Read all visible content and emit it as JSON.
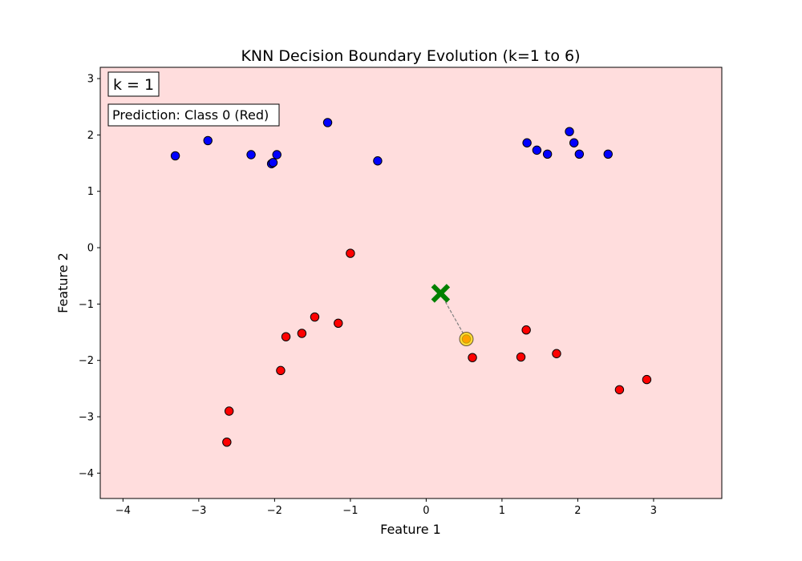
{
  "chart_data": {
    "type": "scatter",
    "title": "KNN Decision Boundary Evolution (k=1 to 6)",
    "xlabel": "Feature 1",
    "ylabel": "Feature 2",
    "xlim": [
      -4.3,
      3.9
    ],
    "ylim": [
      -4.45,
      3.2
    ],
    "xticks": [
      -4,
      -3,
      -2,
      -1,
      0,
      1,
      2,
      3
    ],
    "yticks": [
      -4,
      -3,
      -2,
      -1,
      0,
      1,
      2,
      3
    ],
    "grid": false,
    "background_region": {
      "class": "Class 0 (Red)",
      "color": "#ffdddd"
    },
    "annotations": {
      "k_label": "k = 1",
      "prediction_label": "Prediction: Class 0 (Red)"
    },
    "series": [
      {
        "class": 0,
        "color": "#ff0000",
        "points": [
          [
            -1.0,
            -0.1
          ],
          [
            -1.47,
            -1.23
          ],
          [
            -1.16,
            -1.34
          ],
          [
            -1.64,
            -1.52
          ],
          [
            -1.85,
            -1.58
          ],
          [
            -1.92,
            -2.18
          ],
          [
            -2.6,
            -2.9
          ],
          [
            -2.63,
            -3.45
          ],
          [
            0.61,
            -1.95
          ],
          [
            1.25,
            -1.94
          ],
          [
            1.32,
            -1.46
          ],
          [
            1.72,
            -1.88
          ],
          [
            2.55,
            -2.52
          ],
          [
            2.91,
            -2.34
          ],
          [
            0.53,
            -1.62
          ]
        ]
      },
      {
        "class": 1,
        "color": "#0000ff",
        "points": [
          [
            -3.31,
            1.63
          ],
          [
            -2.88,
            1.9
          ],
          [
            -2.31,
            1.65
          ],
          [
            -2.04,
            1.49
          ],
          [
            -2.02,
            1.51
          ],
          [
            -1.97,
            1.65
          ],
          [
            -1.3,
            2.22
          ],
          [
            -0.64,
            1.54
          ],
          [
            1.33,
            1.86
          ],
          [
            1.46,
            1.73
          ],
          [
            1.6,
            1.66
          ],
          [
            1.89,
            2.06
          ],
          [
            1.95,
            1.86
          ],
          [
            2.02,
            1.66
          ],
          [
            2.4,
            1.66
          ]
        ]
      }
    ],
    "query_point": {
      "x": 0.19,
      "y": -0.81,
      "color": "#008000",
      "marker": "x"
    },
    "nearest_neighbors": [
      {
        "x": 0.53,
        "y": -1.62,
        "highlight_color": "#ffd700"
      }
    ]
  }
}
